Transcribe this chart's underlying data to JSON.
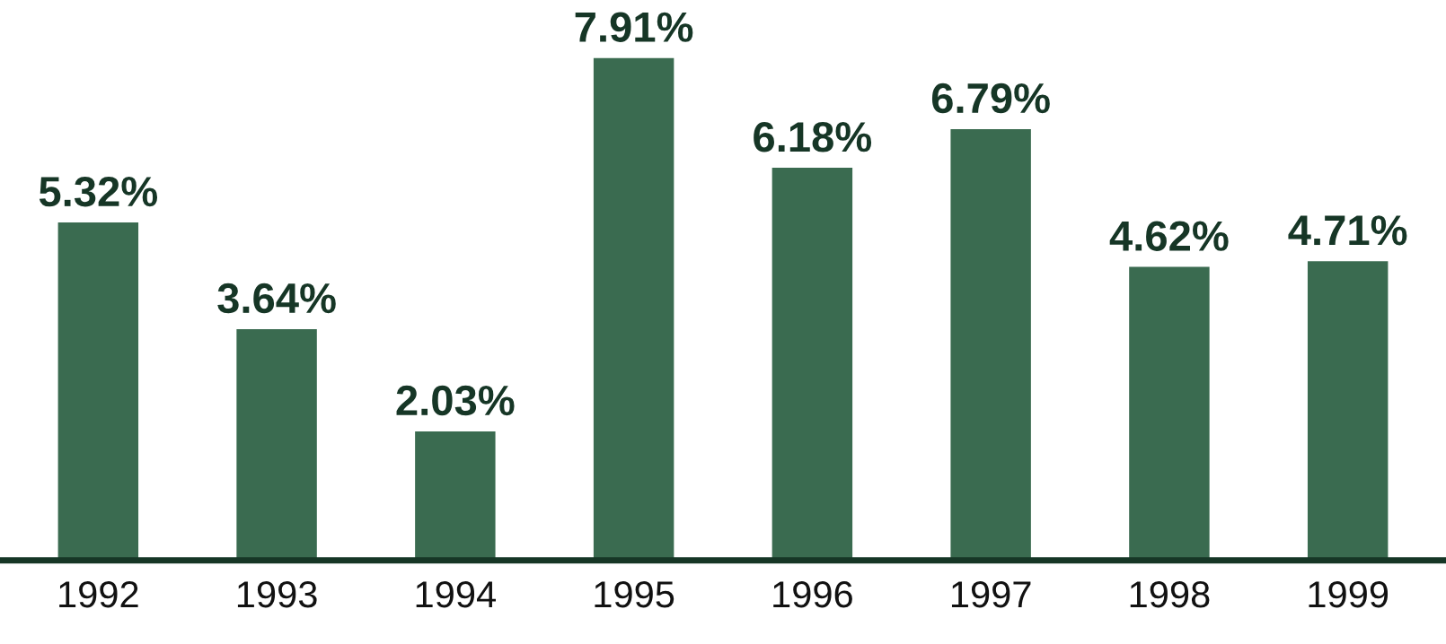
{
  "chart_data": {
    "type": "bar",
    "categories": [
      "1992",
      "1993",
      "1994",
      "1995",
      "1996",
      "1997",
      "1998",
      "1999"
    ],
    "values": [
      5.32,
      3.64,
      2.03,
      7.91,
      6.18,
      6.79,
      4.62,
      4.71
    ],
    "value_labels": [
      "5.32%",
      "3.64%",
      "2.03%",
      "7.91%",
      "6.18%",
      "6.79%",
      "4.62%",
      "4.71%"
    ],
    "color": "#3a6b50",
    "grid": false,
    "legend": false
  }
}
